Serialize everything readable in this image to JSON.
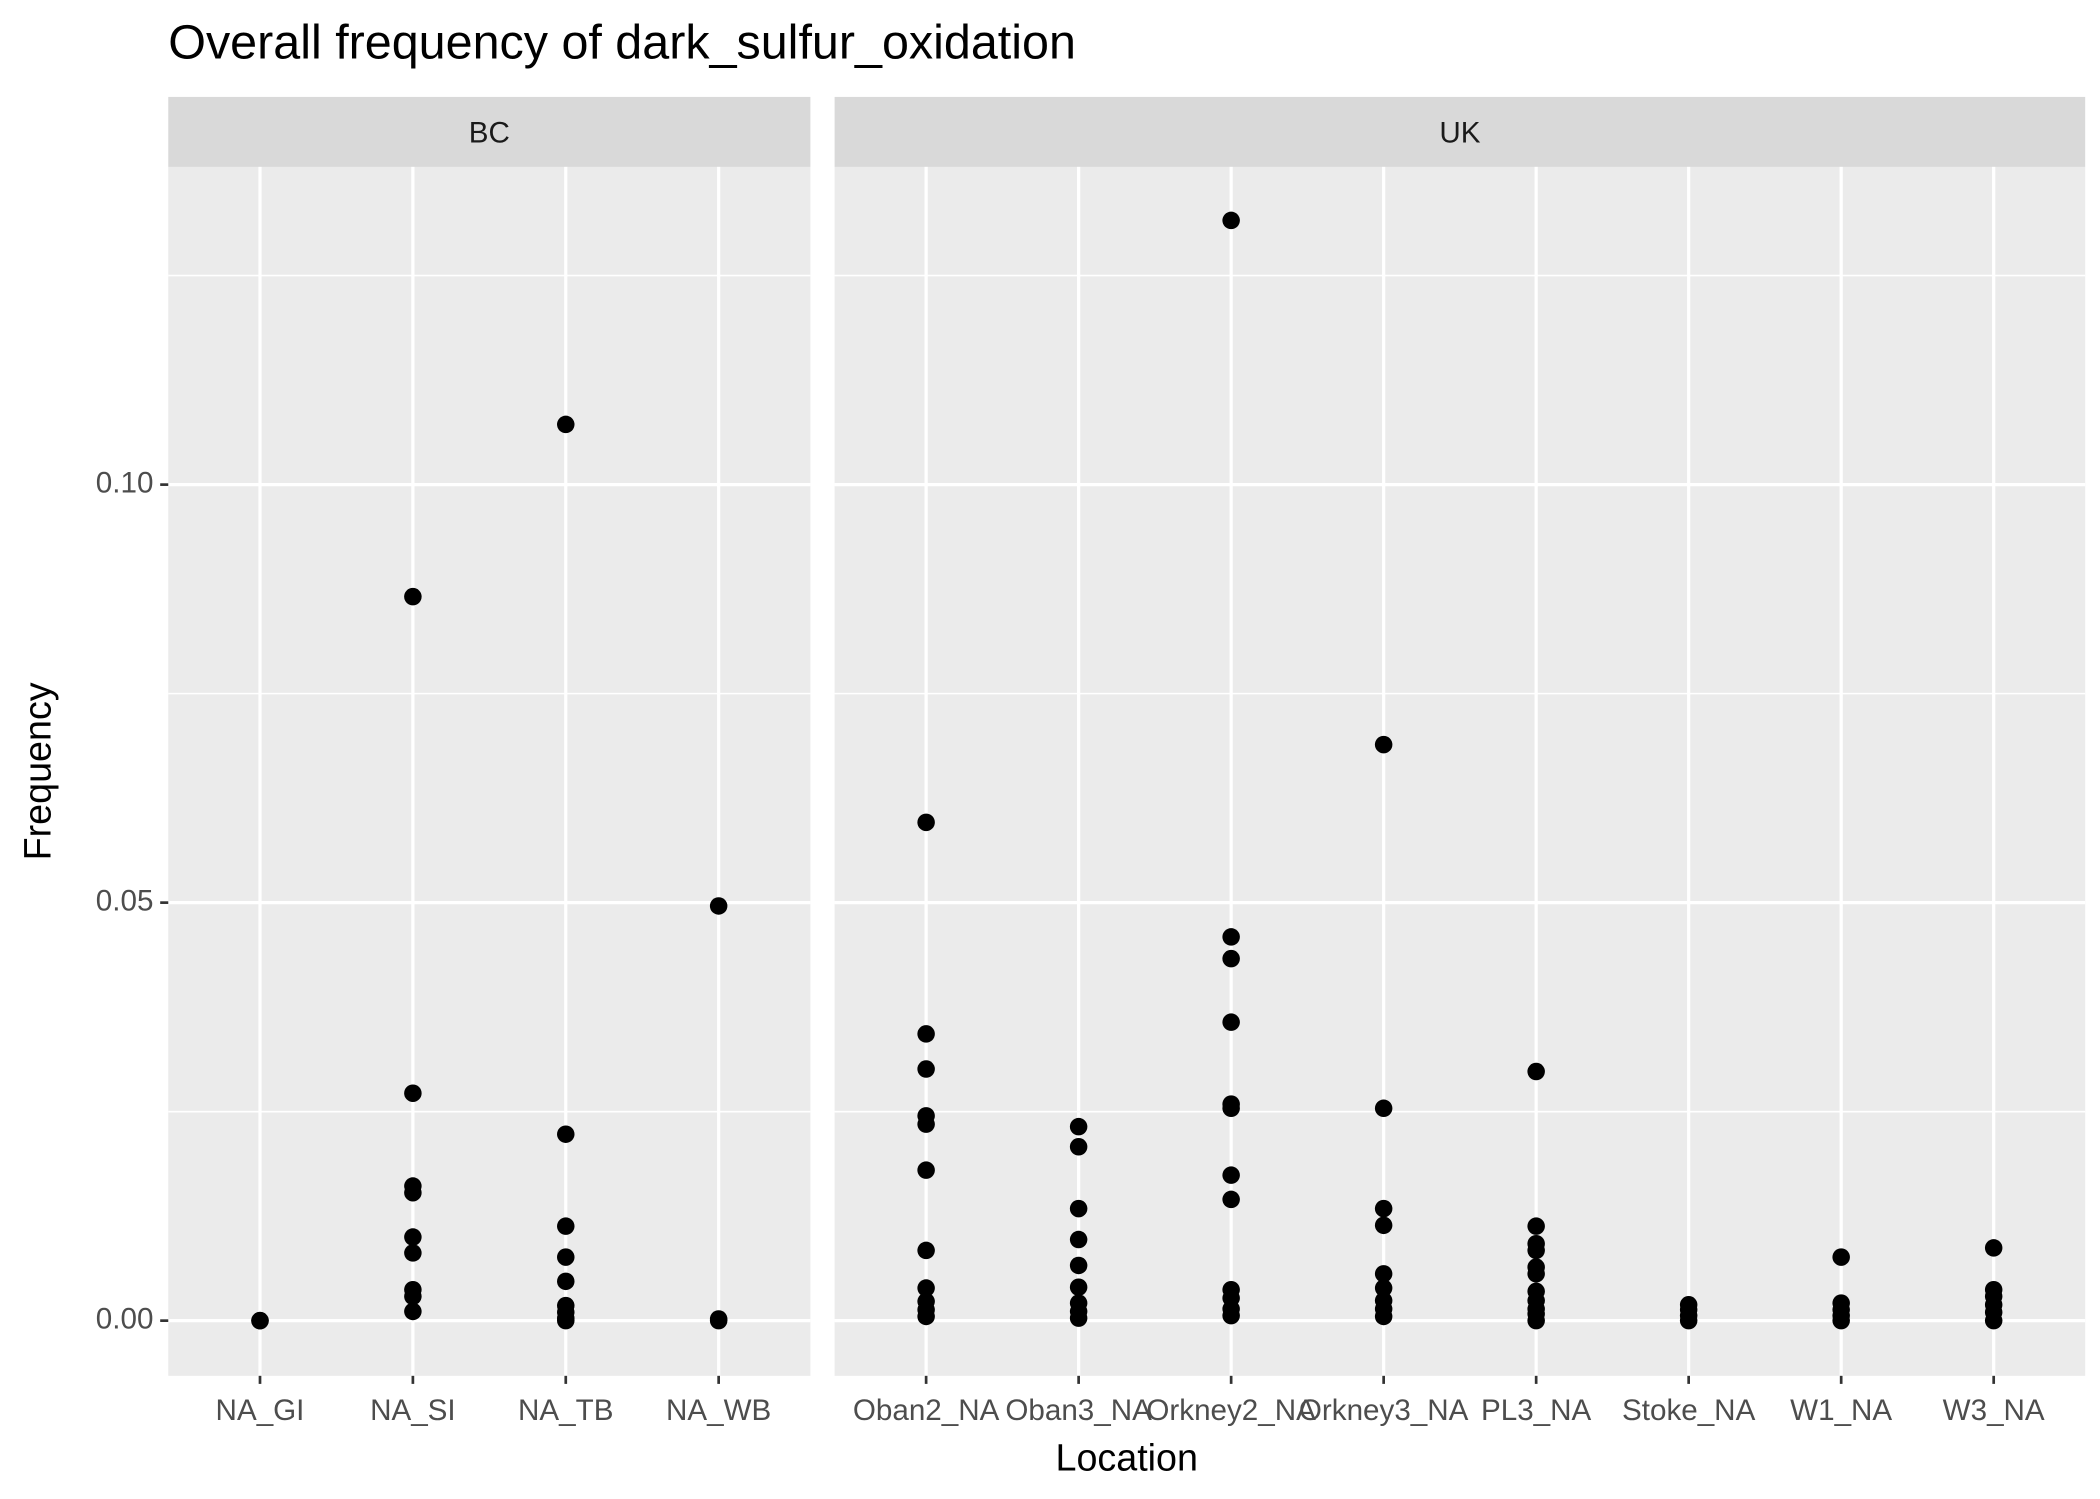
{
  "chart_data": {
    "type": "strip",
    "title": "Overall frequency of dark_sulfur_oxidation",
    "xlabel": "Location",
    "ylabel": "Frequency",
    "ylim": [
      -0.0066,
      0.138
    ],
    "yticks": [
      {
        "value": 0,
        "label": "0.00"
      },
      {
        "value": 0.05,
        "label": "0.05"
      },
      {
        "value": 0.1,
        "label": "0.10"
      }
    ],
    "minor_yticks": [
      0.025,
      0.075,
      0.125
    ],
    "grid": true,
    "color": "#000000",
    "panels": [
      {
        "label": "BC",
        "categories": [
          "NA_GI",
          "NA_SI",
          "NA_TB",
          "NA_WB"
        ],
        "values": [
          [
            0,
            0
          ],
          [
            0.0866,
            0.0272,
            0.0161,
            0.0153,
            0.01,
            0.0081,
            0.0037,
            0.0029,
            0.0011
          ],
          [
            0.1072,
            0.0223,
            0.0113,
            0.0076,
            0.0047,
            0.0018,
            0.001,
            0.0003,
            0
          ],
          [
            0.0496,
            0.0002,
            0
          ]
        ]
      },
      {
        "label": "UK",
        "categories": [
          "Oban2_NA",
          "Oban3_NA",
          "Orkney2_NA",
          "Orkney3_NA",
          "PL3_NA",
          "Stoke_NA",
          "W1_NA",
          "W3_NA"
        ],
        "values": [
          [
            0.0596,
            0.0343,
            0.0301,
            0.0245,
            0.0235,
            0.018,
            0.0084,
            0.0039,
            0.0023,
            0.0013,
            0.0005
          ],
          [
            0.0232,
            0.0208,
            0.0134,
            0.0097,
            0.0066,
            0.004,
            0.0021,
            0.0011,
            0.0003
          ],
          [
            0.1316,
            0.0459,
            0.0433,
            0.0357,
            0.0259,
            0.0254,
            0.0174,
            0.0145,
            0.0037,
            0.0027,
            0.0014,
            0.0006
          ],
          [
            0.0689,
            0.0254,
            0.0134,
            0.0114,
            0.0056,
            0.0039,
            0.0024,
            0.0014,
            0.0005
          ],
          [
            0.0298,
            0.0113,
            0.0092,
            0.0084,
            0.0064,
            0.0056,
            0.0035,
            0.0024,
            0.0014,
            0.0008,
            0
          ],
          [
            0.0019,
            0.0013,
            0.0006,
            0
          ],
          [
            0.0076,
            0.0021,
            0.0013,
            0.0006,
            0
          ],
          [
            0.0087,
            0.0037,
            0.0029,
            0.0019,
            0.001,
            0
          ]
        ]
      }
    ]
  }
}
